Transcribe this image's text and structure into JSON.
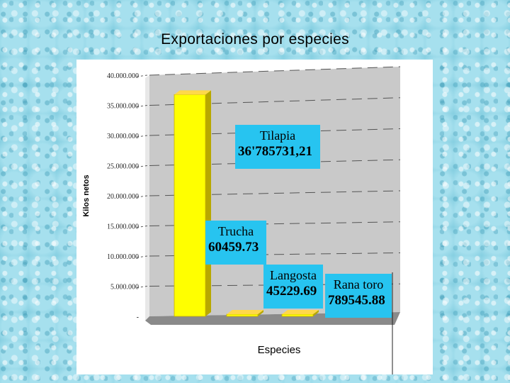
{
  "slide": {
    "title": "Exportaciones por especies"
  },
  "colors": {
    "bar": "#ffff00",
    "bar_side": "#b8a800",
    "bar_top": "#ffd84a",
    "callout": "#27c4f0",
    "wall": "#c9c9c9",
    "floor": "#8a8a8a"
  },
  "chart_data": {
    "type": "bar",
    "title": "",
    "xlabel": "Especies",
    "ylabel": "Kilos netos",
    "ylim": [
      0,
      40000000
    ],
    "y_tick_labels": [
      "-",
      "5.000.000",
      "10.000.000",
      "15.000.000",
      "20.000.000",
      "25.000.000",
      "30.000.000",
      "35.000.000",
      "40.000.000"
    ],
    "categories": [
      "Tilapia",
      "Trucha",
      "Langosta",
      "Rana toro"
    ],
    "values": [
      36785731.21,
      60459.73,
      45229.69,
      789545.88
    ],
    "grid": true,
    "legend": "none",
    "annotations": [
      {
        "label": "Tilapia",
        "value": "36'785731,21"
      },
      {
        "label": "Trucha",
        "value": "60459.73"
      },
      {
        "label": "Langosta",
        "value": "45229.69"
      },
      {
        "label": "Rana toro",
        "value": "789545.88"
      }
    ]
  }
}
